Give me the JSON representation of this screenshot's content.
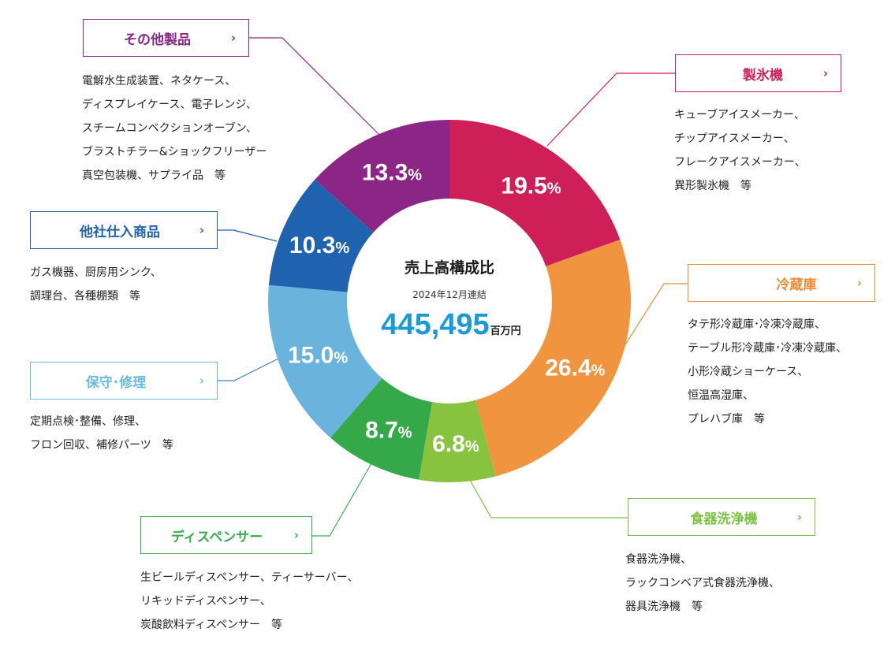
{
  "chart_data": {
    "type": "pie",
    "variant": "donut",
    "title": "売上高構成比",
    "subtitle": "2024年12月連結",
    "total": {
      "value": "445,495",
      "unit": "百万円"
    },
    "categories": [
      "製氷機",
      "冷蔵庫",
      "食器洗浄機",
      "ディスペンサー",
      "保守・修理",
      "他社仕入商品",
      "その他製品"
    ],
    "values": [
      19.5,
      26.4,
      6.8,
      8.7,
      15.0,
      10.3,
      13.3
    ],
    "labels": [
      "19.5",
      "26.4",
      "6.8",
      "8.7",
      "15.0",
      "10.3",
      "13.3"
    ],
    "percent_sign": "%",
    "colors": [
      "#cf1f58",
      "#f1943f",
      "#88c33f",
      "#35a94a",
      "#69b3dc",
      "#1e62b0",
      "#8b2687"
    ],
    "start": "12 o'clock, clockwise"
  },
  "colors": {
    "center_value": "#1b9ad7",
    "seiyoki": "#cf1f58",
    "reizoko": "#f08a33",
    "shokki": "#7cc243",
    "dispenser": "#3aae4f",
    "hoshu": "#6bbadf",
    "tasha": "#1e62b0",
    "sonota": "#8b2687"
  },
  "categories": {
    "seiyoki": {
      "name": "製氷機",
      "chevron": "›",
      "lines": [
        "キューブアイスメーカー、",
        "チップアイスメーカー、",
        "フレークアイスメーカー、",
        "異形製氷機　等"
      ]
    },
    "reizoko": {
      "name": "冷蔵庫",
      "chevron": "›",
      "lines": [
        "タテ形冷蔵庫･冷凍冷蔵庫、",
        "テーブル形冷蔵庫･冷凍冷蔵庫、",
        "小形冷蔵ショーケース、",
        "恒温高湿庫、",
        "プレハブ庫　等"
      ]
    },
    "shokki": {
      "name": "食器洗浄機",
      "chevron": "›",
      "lines": [
        "食器洗浄機、",
        "ラックコンベア式食器洗浄機、",
        "器具洗浄機　等"
      ]
    },
    "dispenser": {
      "name": "ディスペンサー",
      "chevron": "›",
      "lines": [
        "生ビールディスペンサー、ティーサーバー、",
        "リキッドディスペンサー、",
        "炭酸飲料ディスペンサー　等"
      ]
    },
    "hoshu": {
      "name": "保守･修理",
      "chevron": "›",
      "lines": [
        "定期点検･整備、修理、",
        "フロン回収、補修パーツ　等"
      ]
    },
    "tasha": {
      "name": "他社仕入商品",
      "chevron": "›",
      "lines": [
        "ガス機器、厨房用シンク、",
        "調理台、各種棚類　等"
      ]
    },
    "sonota": {
      "name": "その他製品",
      "chevron": "›",
      "lines": [
        "電解水生成装置、ネタケース、",
        "ディスプレイケース、電子レンジ、",
        "スチームコンベクションオーブン、",
        "ブラストチラー&ショックフリーザー",
        "真空包装機、サプライ品　等"
      ]
    }
  }
}
